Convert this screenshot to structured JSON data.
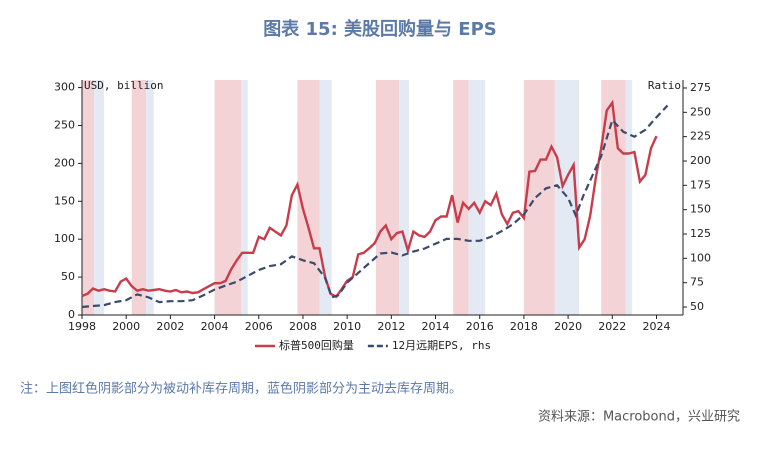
{
  "chart_data": {
    "type": "line",
    "title": "图表 15: 美股回购量与 EPS",
    "ylabel": "USD, billion",
    "y2label": "Ratio",
    "note": "注：上图红色阴影部分为被动补库存周期，蓝色阴影部分为主动去库存周期。",
    "source": "资料来源：Macrobond，兴业研究",
    "xlim": [
      1998,
      2025.2
    ],
    "xticks": [
      1998,
      2000,
      2002,
      2004,
      2006,
      2008,
      2010,
      2012,
      2014,
      2016,
      2018,
      2020,
      2022,
      2024
    ],
    "ylim": [
      0,
      310
    ],
    "yticks": [
      0,
      50,
      100,
      150,
      200,
      250,
      300
    ],
    "y2lim": [
      41.8,
      283.2
    ],
    "y2ticks": [
      50,
      75,
      100,
      125,
      150,
      175,
      200,
      225,
      250,
      275
    ],
    "shaded_regions": [
      {
        "start": 1998.0,
        "end": 1998.55,
        "color": "#f3d3d6"
      },
      {
        "start": 1998.55,
        "end": 1999.0,
        "color": "#e3eaf4"
      },
      {
        "start": 2000.25,
        "end": 2000.9,
        "color": "#f3d3d6"
      },
      {
        "start": 2000.9,
        "end": 2001.25,
        "color": "#e3eaf4"
      },
      {
        "start": 2004.0,
        "end": 2005.2,
        "color": "#f3d3d6"
      },
      {
        "start": 2005.2,
        "end": 2005.5,
        "color": "#e3eaf4"
      },
      {
        "start": 2007.75,
        "end": 2008.75,
        "color": "#f3d3d6"
      },
      {
        "start": 2008.75,
        "end": 2009.3,
        "color": "#e3eaf4"
      },
      {
        "start": 2011.3,
        "end": 2012.35,
        "color": "#f3d3d6"
      },
      {
        "start": 2012.35,
        "end": 2012.8,
        "color": "#e3eaf4"
      },
      {
        "start": 2014.8,
        "end": 2015.5,
        "color": "#f3d3d6"
      },
      {
        "start": 2015.5,
        "end": 2016.25,
        "color": "#e3eaf4"
      },
      {
        "start": 2018.0,
        "end": 2019.4,
        "color": "#f3d3d6"
      },
      {
        "start": 2019.4,
        "end": 2020.5,
        "color": "#e3eaf4"
      },
      {
        "start": 2021.5,
        "end": 2022.6,
        "color": "#f3d3d6"
      },
      {
        "start": 2022.6,
        "end": 2022.9,
        "color": "#e3eaf4"
      }
    ],
    "series": [
      {
        "name": "标普500回购量",
        "color": "#c83c4b",
        "dash": false,
        "x": [
          1998,
          1998.25,
          1998.5,
          1998.75,
          1999,
          1999.25,
          1999.5,
          1999.75,
          2000,
          2000.25,
          2000.5,
          2000.75,
          2001,
          2001.25,
          2001.5,
          2001.75,
          2002,
          2002.25,
          2002.5,
          2002.75,
          2003,
          2003.25,
          2003.5,
          2003.75,
          2004,
          2004.25,
          2004.5,
          2004.75,
          2005,
          2005.25,
          2005.5,
          2005.75,
          2006,
          2006.25,
          2006.5,
          2006.75,
          2007,
          2007.25,
          2007.5,
          2007.75,
          2008,
          2008.25,
          2008.5,
          2008.75,
          2009,
          2009.25,
          2009.5,
          2009.75,
          2010,
          2010.25,
          2010.5,
          2010.75,
          2011,
          2011.25,
          2011.5,
          2011.75,
          2012,
          2012.25,
          2012.5,
          2012.75,
          2013,
          2013.25,
          2013.5,
          2013.75,
          2014,
          2014.25,
          2014.5,
          2014.75,
          2015,
          2015.25,
          2015.5,
          2015.75,
          2016,
          2016.25,
          2016.5,
          2016.75,
          2017,
          2017.25,
          2017.5,
          2017.75,
          2018,
          2018.25,
          2018.5,
          2018.75,
          2019,
          2019.25,
          2019.5,
          2019.75,
          2020,
          2020.25,
          2020.5,
          2020.75,
          2021,
          2021.25,
          2021.5,
          2021.75,
          2022,
          2022.25,
          2022.5,
          2022.75,
          2023,
          2023.25,
          2023.5,
          2023.75,
          2024
        ],
        "values": [
          25,
          28,
          35,
          32,
          34,
          32,
          31,
          44,
          48,
          38,
          32,
          34,
          32,
          33,
          34,
          32,
          31,
          33,
          30,
          31,
          29,
          30,
          34,
          38,
          42,
          42,
          45,
          60,
          72,
          82,
          82,
          82,
          103,
          100,
          115,
          110,
          105,
          118,
          158,
          172,
          140,
          115,
          88,
          88,
          50,
          28,
          24,
          34,
          45,
          50,
          80,
          82,
          88,
          95,
          110,
          118,
          100,
          108,
          110,
          85,
          110,
          105,
          103,
          110,
          125,
          130,
          130,
          158,
          122,
          148,
          140,
          148,
          135,
          150,
          145,
          160,
          133,
          120,
          135,
          137,
          128,
          189,
          190,
          205,
          205,
          222,
          208,
          170,
          185,
          198,
          89,
          100,
          131,
          180,
          220,
          270,
          280,
          220,
          213,
          213,
          215,
          176,
          185,
          220,
          236
        ]
      },
      {
        "name": "12月远期EPS, rhs",
        "color": "#3c4a6b",
        "dash": true,
        "axis": "y2",
        "x": [
          1998,
          1998.5,
          1999,
          1999.5,
          2000,
          2000.5,
          2001,
          2001.5,
          2002,
          2002.5,
          2003,
          2003.5,
          2004,
          2004.5,
          2005,
          2005.5,
          2006,
          2006.5,
          2007,
          2007.5,
          2008,
          2008.5,
          2009,
          2009.3,
          2009.6,
          2010,
          2010.5,
          2011,
          2011.5,
          2012,
          2012.5,
          2013,
          2013.5,
          2014,
          2014.5,
          2015,
          2015.5,
          2016,
          2016.5,
          2017,
          2017.5,
          2018,
          2018.5,
          2019,
          2019.5,
          2020,
          2020.35,
          2020.7,
          2021,
          2021.5,
          2022,
          2022.5,
          2023,
          2023.5,
          2024,
          2024.5
        ],
        "values": [
          50,
          51,
          52,
          55,
          57,
          63,
          60,
          55,
          56,
          56,
          57,
          62,
          68,
          72,
          76,
          82,
          88,
          92,
          94,
          102,
          98,
          95,
          80,
          60,
          62,
          75,
          85,
          95,
          105,
          106,
          103,
          107,
          110,
          115,
          120,
          120,
          118,
          118,
          122,
          128,
          135,
          145,
          162,
          172,
          175,
          162,
          144,
          165,
          180,
          205,
          242,
          230,
          225,
          232,
          245,
          257
        ]
      }
    ]
  }
}
